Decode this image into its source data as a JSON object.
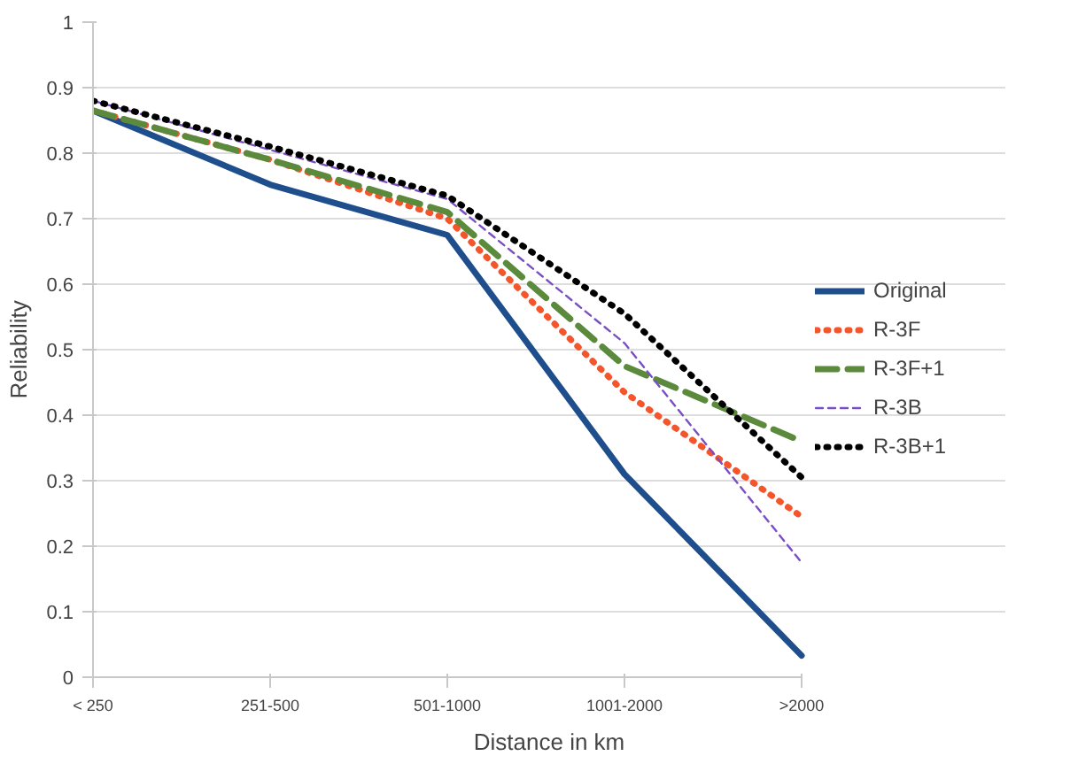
{
  "chart_data": {
    "type": "line",
    "xlabel": "Distance in km",
    "ylabel": "Reliability",
    "categories": [
      "< 250",
      "251-500",
      "501-1000",
      "1001-2000",
      ">2000"
    ],
    "ylim": [
      0,
      1
    ],
    "yticks": [
      0,
      0.1,
      0.2,
      0.3,
      0.4,
      0.5,
      0.6,
      0.7,
      0.8,
      0.9,
      1
    ],
    "grid": "y",
    "legend": "right",
    "marker": "none",
    "series": [
      {
        "name": "Original",
        "color": "#1f4e8c",
        "values": [
          0.865,
          0.752,
          0.675,
          0.31,
          0.033
        ],
        "line_style": "solid"
      },
      {
        "name": "R-3F",
        "color": "#f4552b",
        "values": [
          0.865,
          0.79,
          0.7,
          0.435,
          0.245
        ],
        "line_style": "dotted"
      },
      {
        "name": "R-3F+1",
        "color": "#5b8a3c",
        "values": [
          0.865,
          0.79,
          0.71,
          0.475,
          0.36
        ],
        "line_style": "dashed"
      },
      {
        "name": "R-3B",
        "color": "#7b4fc4",
        "values": [
          0.88,
          0.805,
          0.73,
          0.51,
          0.175
        ],
        "line_style": "dashed"
      },
      {
        "name": "R-3B+1",
        "color": "#000000",
        "values": [
          0.88,
          0.81,
          0.735,
          0.555,
          0.305
        ],
        "line_style": "dotted"
      }
    ]
  }
}
